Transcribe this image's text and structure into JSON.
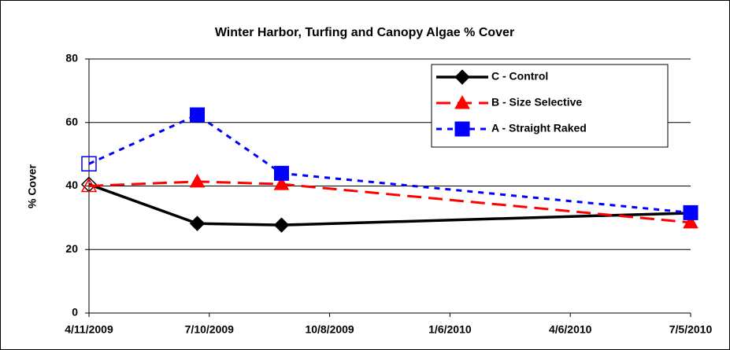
{
  "chart_data": {
    "type": "line",
    "title": "Winter Harbor, Turfing and Canopy Algae % Cover",
    "y_label": "% Cover",
    "x": [
      "4/11/2009",
      "7/1/2009",
      "9/2/2009",
      "7/5/2010"
    ],
    "xlim": [
      "4/11/2009",
      "7/5/2010"
    ],
    "xticks": [
      "4/11/2009",
      "7/10/2009",
      "10/8/2009",
      "1/6/2010",
      "4/6/2010",
      "7/5/2010"
    ],
    "ylim": [
      0,
      80
    ],
    "yticks": [
      0,
      20,
      40,
      60,
      80
    ],
    "grid": true,
    "legend": "upper right",
    "series": [
      {
        "name": "C - Control",
        "color": "#000000",
        "line_style": "solid",
        "marker": "diamond",
        "values": [
          40.5,
          28.2,
          27.7,
          31.5
        ]
      },
      {
        "name": "B - Size Selective",
        "color": "#ff0000",
        "line_style": "dashed",
        "marker": "triangle",
        "values": [
          40,
          41.4,
          40.6,
          28.5
        ]
      },
      {
        "name": "A - Straight Raked",
        "color": "#0000ff",
        "line_style": "dotted",
        "marker": "square",
        "values": [
          47,
          62.4,
          44,
          31.6
        ]
      }
    ]
  }
}
